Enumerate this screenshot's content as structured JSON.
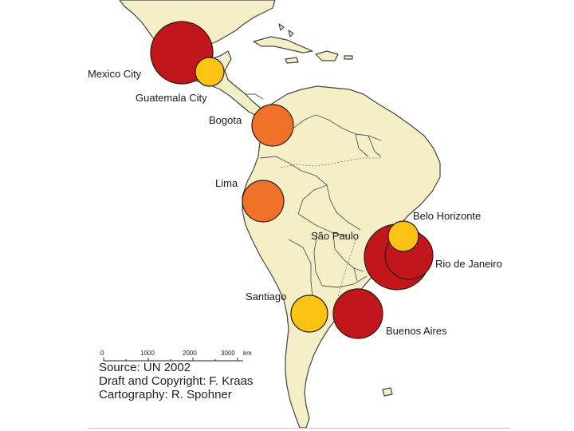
{
  "colors": {
    "land": "#f5efc8",
    "land_border": "#444444",
    "water": "#ffffff",
    "large": "#c0161c",
    "medium": "#f07228",
    "small": "#fcc314"
  },
  "cities": [
    {
      "id": "mexico-city",
      "label": "Mexico City",
      "size_class": "large"
    },
    {
      "id": "guatemala-city",
      "label": "Guatemala City",
      "size_class": "small"
    },
    {
      "id": "bogota",
      "label": "Bogota",
      "size_class": "medium"
    },
    {
      "id": "lima",
      "label": "Lima",
      "size_class": "medium"
    },
    {
      "id": "sao-paulo",
      "label": "São Paulo",
      "size_class": "large"
    },
    {
      "id": "rio-de-janeiro",
      "label": "Rio de Janeiro",
      "size_class": "large"
    },
    {
      "id": "belo-horizonte",
      "label": "Belo Horizonte",
      "size_class": "small"
    },
    {
      "id": "santiago",
      "label": "Santiago",
      "size_class": "small"
    },
    {
      "id": "buenos-aires",
      "label": "Buenos Aires",
      "size_class": "large"
    }
  ],
  "scale_bar": {
    "ticks": [
      "0",
      "1000",
      "2000",
      "3000"
    ],
    "unit": "km"
  },
  "credits": {
    "source": "Source: UN 2002",
    "draft": "Draft and Copyright: F. Kraas",
    "cartography": "Cartography: R. Spohner"
  }
}
